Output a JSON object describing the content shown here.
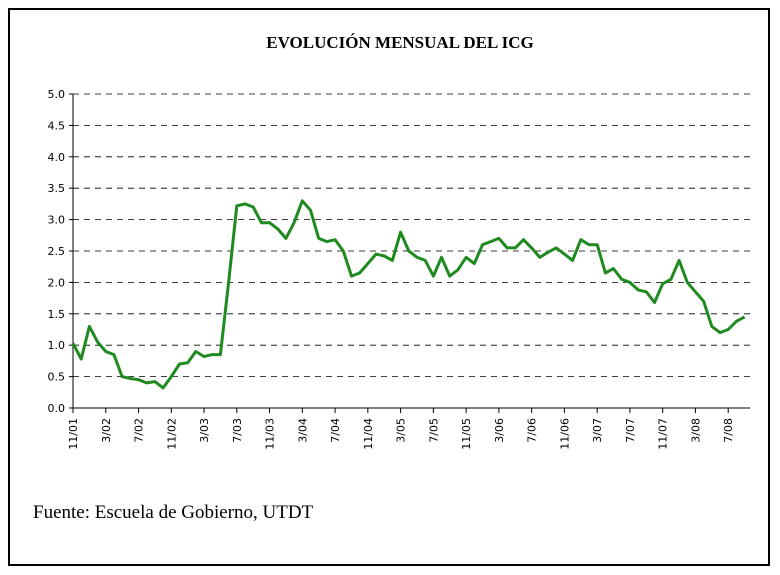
{
  "chart_data": {
    "type": "line",
    "title": "EVOLUCIÓN MENSUAL DEL ICG",
    "source": "Fuente: Escuela de Gobierno, UTDT",
    "categories": [
      "11/01",
      null,
      null,
      null,
      "3/02",
      null,
      null,
      null,
      "7/02",
      null,
      null,
      null,
      "11/02",
      null,
      null,
      null,
      "3/03",
      null,
      null,
      null,
      "7/03",
      null,
      null,
      null,
      "11/03",
      null,
      null,
      null,
      "3/04",
      null,
      null,
      null,
      "7/04",
      null,
      null,
      null,
      "11/04",
      null,
      null,
      null,
      "3/05",
      null,
      null,
      null,
      "7/05",
      null,
      null,
      null,
      "11/05",
      null,
      null,
      null,
      "3/06",
      null,
      null,
      null,
      "7/06",
      null,
      null,
      null,
      "11/06",
      null,
      null,
      null,
      "3/07",
      null,
      null,
      null,
      "7/07",
      null,
      null,
      null,
      "11/07",
      null,
      null,
      null,
      "3/08",
      null,
      null,
      null,
      "7/08",
      null,
      null
    ],
    "series": [
      {
        "name": "ICG",
        "color": "#1f8a1f",
        "values": [
          1.03,
          0.78,
          1.3,
          1.05,
          0.9,
          0.85,
          0.5,
          0.47,
          0.45,
          0.4,
          0.42,
          0.32,
          0.5,
          0.7,
          0.72,
          0.9,
          0.82,
          0.85,
          0.85,
          2.0,
          3.22,
          3.25,
          3.2,
          2.95,
          2.95,
          2.85,
          2.7,
          2.95,
          3.3,
          3.15,
          2.7,
          2.65,
          2.68,
          2.5,
          2.1,
          2.15,
          2.3,
          2.45,
          2.42,
          2.35,
          2.8,
          2.5,
          2.4,
          2.35,
          2.1,
          2.4,
          2.1,
          2.2,
          2.4,
          2.3,
          2.6,
          2.65,
          2.7,
          2.55,
          2.55,
          2.68,
          2.55,
          2.4,
          2.48,
          2.55,
          2.45,
          2.35,
          2.68,
          2.6,
          2.6,
          2.15,
          2.22,
          2.05,
          2.0,
          1.88,
          1.85,
          1.68,
          1.98,
          2.05,
          2.35,
          2.0,
          1.85,
          1.7,
          1.3,
          1.2,
          1.25,
          1.38,
          1.45
        ]
      }
    ],
    "ylim": [
      0,
      5
    ],
    "yticks": [
      {
        "value": 0,
        "label": "0.0"
      },
      {
        "value": 0.5,
        "label": "0.5"
      },
      {
        "value": 1,
        "label": "1.0"
      },
      {
        "value": 1.5,
        "label": "1.5"
      },
      {
        "value": 2,
        "label": "2.0"
      },
      {
        "value": 2.5,
        "label": "2.5"
      },
      {
        "value": 3,
        "label": "3.0"
      },
      {
        "value": 3.5,
        "label": "3.5"
      },
      {
        "value": 4,
        "label": "4.0"
      },
      {
        "value": 4.5,
        "label": "4.5"
      },
      {
        "value": 5,
        "label": "5.0"
      }
    ],
    "grid": true
  }
}
